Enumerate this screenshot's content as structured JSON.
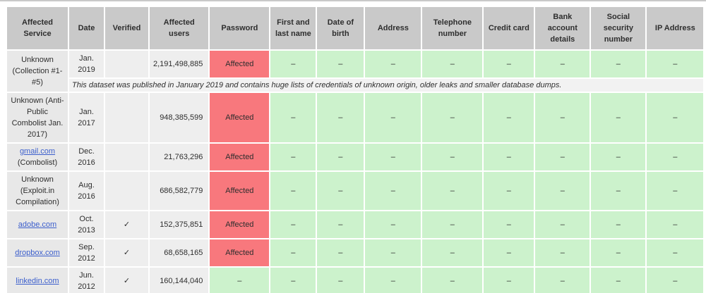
{
  "colors": {
    "divider": "#c9c9c9",
    "header_bg": "#c9c9c9",
    "cell_bg": "#eeeeee",
    "service_bg": "#e8e8e8",
    "note_bg": "#f2f2f2",
    "affected_bg": "#f8787d",
    "safe_bg": "#ccf2cc",
    "text": "#2e2e2e",
    "link": "#3b5ecc"
  },
  "table": {
    "headers": [
      "Affected Service",
      "Date",
      "Verified",
      "Affected users",
      "Password",
      "First and last name",
      "Date of birth",
      "Address",
      "Telephone number",
      "Credit card",
      "Bank account details",
      "Social security number",
      "IP Address"
    ],
    "labels": {
      "affected": "Affected",
      "none": "–",
      "verified_check": "✓"
    },
    "rows": [
      {
        "service": "Unknown (Collection #1-#5)",
        "date": "Jan. 2019",
        "verified": false,
        "users": "2,191,498,885",
        "password": "affected",
        "other_fields": "none",
        "note": "This dataset was published in January 2019 and contains huge lists of credentials of unknown origin, older leaks and smaller database dumps."
      },
      {
        "service": "Unknown (Anti-Public Combolist Jan. 2017)",
        "date": "Jan. 2017",
        "verified": false,
        "users": "948,385,599",
        "password": "affected",
        "other_fields": "none"
      },
      {
        "service_link": "gmail.com",
        "service_suffix": "(Combolist)",
        "date": "Dec. 2016",
        "verified": false,
        "users": "21,763,296",
        "password": "affected",
        "other_fields": "none"
      },
      {
        "service": "Unknown (Exploit.in Compilation)",
        "date": "Aug. 2016",
        "verified": false,
        "users": "686,582,779",
        "password": "affected",
        "other_fields": "none"
      },
      {
        "service_link": "adobe.com",
        "date": "Oct. 2013",
        "verified": true,
        "users": "152,375,851",
        "password": "affected",
        "other_fields": "none"
      },
      {
        "service_link": "dropbox.com",
        "date": "Sep. 2012",
        "verified": true,
        "users": "68,658,165",
        "password": "affected",
        "other_fields": "none"
      },
      {
        "service_link": "linkedin.com",
        "date": "Jun. 2012",
        "verified": true,
        "users": "160,144,040",
        "password": "none",
        "other_fields": "none"
      }
    ]
  }
}
